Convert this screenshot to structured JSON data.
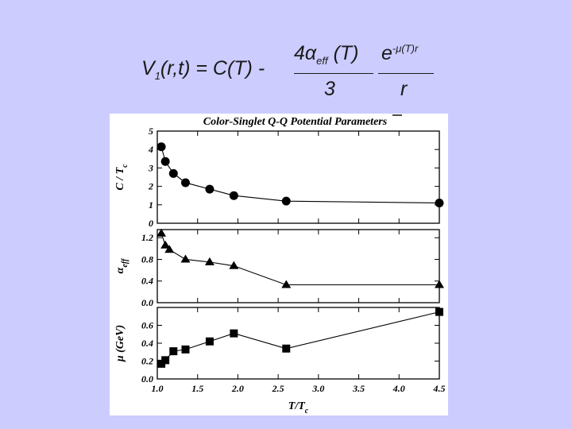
{
  "formula": {
    "lhs": "V",
    "lhs_sub": "1",
    "lhs_args": "(r,t) = C(T) -",
    "num1_main": "4α",
    "num1_sub": "eff",
    "num1_tail": " (T)",
    "num2_main": "e",
    "num2_sup": "-μ(T)r",
    "den1": "3",
    "den2": "r"
  },
  "chart_data": {
    "type": "line",
    "title": "Color-Singlet Q-Q Potential Parameters",
    "xlabel": "T/T",
    "xlabel_sub": "c",
    "xlim": [
      1.0,
      4.5
    ],
    "xticks": [
      "1.0",
      "1.5",
      "2.0",
      "2.5",
      "3.0",
      "3.5",
      "4.0",
      "4.5"
    ],
    "panels": [
      {
        "ylabel": "C / T",
        "ylabel_sub": "c",
        "ylim": [
          0,
          5
        ],
        "yticks": [
          "0",
          "1",
          "2",
          "3",
          "4",
          "5"
        ],
        "marker": "circle",
        "x": [
          1.05,
          1.1,
          1.2,
          1.35,
          1.65,
          1.95,
          2.6,
          4.5
        ],
        "y": [
          4.15,
          3.35,
          2.7,
          2.2,
          1.85,
          1.5,
          1.2,
          1.1
        ]
      },
      {
        "ylabel": "α",
        "ylabel_sub": "eff",
        "ylim": [
          0,
          1.35
        ],
        "yticks": [
          "0.0",
          "0.4",
          "0.8",
          "1.2"
        ],
        "marker": "triangle",
        "x": [
          1.05,
          1.1,
          1.15,
          1.35,
          1.65,
          1.95,
          2.6,
          4.5
        ],
        "y": [
          1.28,
          1.06,
          0.98,
          0.8,
          0.75,
          0.68,
          0.33,
          0.33
        ]
      },
      {
        "ylabel": "μ  (GeV)",
        "ylabel_sub": "",
        "ylim": [
          0,
          0.8
        ],
        "yticks": [
          "0.0",
          "0.2",
          "0.4",
          "0.6"
        ],
        "marker": "square",
        "x": [
          1.05,
          1.1,
          1.2,
          1.35,
          1.65,
          1.95,
          2.6,
          4.5
        ],
        "y": [
          0.17,
          0.21,
          0.31,
          0.33,
          0.42,
          0.51,
          0.34,
          0.75
        ]
      }
    ]
  }
}
